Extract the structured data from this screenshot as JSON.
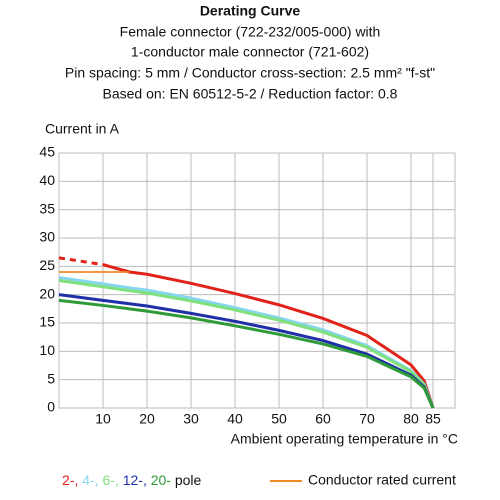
{
  "chart_data": {
    "type": "line",
    "title": "Derating Curve",
    "subtitle_lines": [
      "Female connector (722-232/005-000) with",
      "1-conductor male connector (721-602)",
      "Pin spacing: 5 mm / Conductor cross-section: 2.5 mm² \"f-st\"",
      "Based on: EN 60512-5-2 / Reduction factor: 0.8"
    ],
    "y_label": "Current in A",
    "x_label": "Ambient operating temperature in °C",
    "legend_suffix": "pole",
    "x": [
      0,
      10,
      16,
      20,
      30,
      40,
      50,
      60,
      70,
      80,
      83,
      85
    ],
    "series": [
      {
        "name": "2-,",
        "color": "#e2231a",
        "values": [
          26.5,
          25.3,
          24.0,
          23.6,
          22.0,
          20.2,
          18.2,
          15.8,
          12.8,
          7.6,
          4.8,
          0
        ]
      },
      {
        "name": "4-,",
        "color": "#86d6ef",
        "values": [
          23.0,
          21.9,
          21.2,
          20.8,
          19.4,
          17.7,
          15.9,
          13.8,
          11.0,
          6.6,
          4.2,
          0
        ]
      },
      {
        "name": "6-,",
        "color": "#7fe07c",
        "values": [
          22.5,
          21.4,
          20.7,
          20.3,
          18.9,
          17.3,
          15.5,
          13.4,
          10.7,
          6.4,
          4.1,
          0
        ]
      },
      {
        "name": "12-,",
        "color": "#1f2fa8",
        "values": [
          20.0,
          19.0,
          18.4,
          18.0,
          16.7,
          15.3,
          13.7,
          11.9,
          9.5,
          5.8,
          3.7,
          0
        ]
      },
      {
        "name": "20-",
        "color": "#2e9b38",
        "values": [
          19.0,
          18.1,
          17.5,
          17.1,
          15.9,
          14.5,
          13.0,
          11.3,
          9.1,
          5.5,
          3.5,
          0
        ]
      },
      {
        "name": "Conductor rated current",
        "color": "#f08a24",
        "values": [
          24,
          24,
          24,
          null,
          null,
          null,
          null,
          null,
          null,
          null,
          null,
          null
        ]
      }
    ],
    "xlim": [
      0,
      90
    ],
    "xticks": [
      10,
      20,
      30,
      40,
      50,
      60,
      70,
      80,
      85
    ],
    "ylim": [
      0,
      45
    ],
    "yticks": [
      0,
      5,
      10,
      15,
      20,
      25,
      30,
      35,
      40,
      45
    ],
    "grid": true
  }
}
